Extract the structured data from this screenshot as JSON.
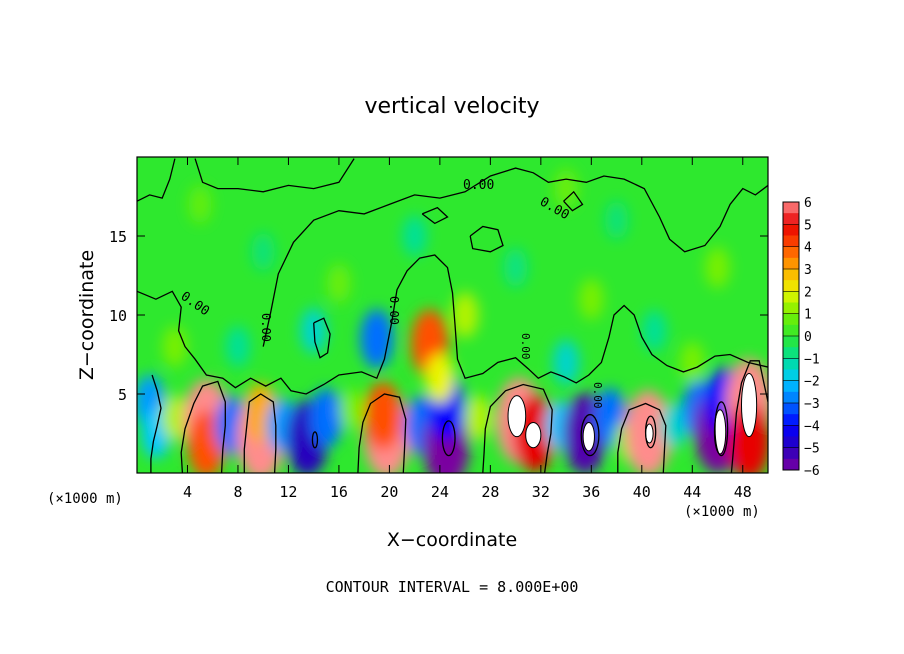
{
  "chart_data": {
    "type": "heatmap",
    "title": "vertical velocity",
    "xlabel": "X−coordinate",
    "ylabel": "Z−coordinate",
    "x_unit_left": "(×1000 m)",
    "x_unit_right": "(×1000 m)",
    "xlim": [
      0,
      50
    ],
    "ylim": [
      0,
      20
    ],
    "x_ticks": [
      "4",
      "8",
      "12",
      "16",
      "20",
      "24",
      "28",
      "32",
      "36",
      "40",
      "44",
      "48"
    ],
    "x_tick_values": [
      4,
      8,
      12,
      16,
      20,
      24,
      28,
      32,
      36,
      40,
      44,
      48
    ],
    "y_ticks": [
      "5",
      "10",
      "15"
    ],
    "y_tick_values": [
      5,
      10,
      15
    ],
    "zero_contour_label": "0.00",
    "contour_interval_text": "CONTOUR INTERVAL = 8.000E+00",
    "colorbar": {
      "min": -6,
      "max": 6,
      "labels": [
        "6",
        "5",
        "4",
        "3",
        "2",
        "1",
        "0",
        "−1",
        "−2",
        "−3",
        "−4",
        "−5",
        "−6"
      ],
      "label_values": [
        6,
        5,
        4,
        3,
        2,
        1,
        0,
        -1,
        -2,
        -3,
        -4,
        -5,
        -6
      ]
    },
    "cells": [
      {
        "x": 1,
        "z": 4.5,
        "w": -2.5
      },
      {
        "x": 1.5,
        "z": 2.5,
        "w": -2
      },
      {
        "x": 3,
        "z": 3.5,
        "w": 1.5
      },
      {
        "x": 5.5,
        "z": 3.2,
        "w": 6
      },
      {
        "x": 5.5,
        "z": 1.8,
        "w": 4
      },
      {
        "x": 7.5,
        "z": 3,
        "w": -3
      },
      {
        "x": 9.8,
        "z": 2.2,
        "w": 6
      },
      {
        "x": 9.8,
        "z": 3.8,
        "w": 3
      },
      {
        "x": 11.5,
        "z": 3,
        "w": -2.5
      },
      {
        "x": 13.5,
        "z": 2.2,
        "w": -5
      },
      {
        "x": 15,
        "z": 3.5,
        "w": -3
      },
      {
        "x": 17,
        "z": 4,
        "w": 1
      },
      {
        "x": 19.8,
        "z": 2.4,
        "w": 6
      },
      {
        "x": 19.5,
        "z": 3.6,
        "w": 4
      },
      {
        "x": 22.5,
        "z": 3,
        "w": -3
      },
      {
        "x": 24.5,
        "z": 1.8,
        "w": -6
      },
      {
        "x": 24.5,
        "z": 4.2,
        "w": -4
      },
      {
        "x": 27,
        "z": 3.5,
        "w": 1.5
      },
      {
        "x": 30.3,
        "z": 3.3,
        "w": 6
      },
      {
        "x": 31.5,
        "z": 2.5,
        "w": 5
      },
      {
        "x": 33.5,
        "z": 3,
        "w": -2
      },
      {
        "x": 35.5,
        "z": 2.5,
        "w": -5.5
      },
      {
        "x": 37.5,
        "z": 3.5,
        "w": -3
      },
      {
        "x": 38.7,
        "z": 2,
        "w": 1
      },
      {
        "x": 40.5,
        "z": 2.5,
        "w": 6
      },
      {
        "x": 42.5,
        "z": 3,
        "w": -1.5
      },
      {
        "x": 44.5,
        "z": 4,
        "w": -3
      },
      {
        "x": 46,
        "z": 2.7,
        "w": -6
      },
      {
        "x": 46.5,
        "z": 4.5,
        "w": -4
      },
      {
        "x": 48.5,
        "z": 4.5,
        "w": 6
      },
      {
        "x": 48.5,
        "z": 2,
        "w": 5
      },
      {
        "x": 19,
        "z": 8.5,
        "w": -3
      },
      {
        "x": 23.2,
        "z": 8.2,
        "w": 4
      },
      {
        "x": 24,
        "z": 6,
        "w": 2
      },
      {
        "x": 26,
        "z": 10,
        "w": 1.5
      },
      {
        "x": 14,
        "z": 9,
        "w": -1.5
      },
      {
        "x": 8,
        "z": 8,
        "w": -1
      },
      {
        "x": 34,
        "z": 7,
        "w": -1.5
      },
      {
        "x": 36,
        "z": 11,
        "w": 1
      },
      {
        "x": 41,
        "z": 9,
        "w": -1
      },
      {
        "x": 44,
        "z": 7,
        "w": 1
      },
      {
        "x": 3,
        "z": 8,
        "w": 1
      },
      {
        "x": 10,
        "z": 14,
        "w": -0.7
      },
      {
        "x": 22,
        "z": 15,
        "w": -1
      },
      {
        "x": 30,
        "z": 13,
        "w": -0.8
      },
      {
        "x": 38,
        "z": 16,
        "w": -0.7
      },
      {
        "x": 46,
        "z": 13,
        "w": 1
      },
      {
        "x": 5,
        "z": 17,
        "w": 0.7
      },
      {
        "x": 34,
        "z": 18,
        "w": 0.8
      },
      {
        "x": 16,
        "z": 12,
        "w": 0.8
      }
    ],
    "zero_contours": [
      [
        [
          0,
          11.5
        ],
        [
          1.5,
          11
        ],
        [
          2.8,
          11.5
        ],
        [
          3.5,
          10.5
        ],
        [
          3.3,
          9
        ],
        [
          3.8,
          8
        ],
        [
          4.6,
          7.2
        ],
        [
          5.5,
          6.2
        ],
        [
          6.8,
          6
        ],
        [
          7.8,
          5.4
        ],
        [
          9,
          6
        ],
        [
          10.2,
          5.5
        ],
        [
          11.4,
          6
        ],
        [
          12.2,
          5.2
        ],
        [
          13.4,
          5
        ],
        [
          14.8,
          5.6
        ],
        [
          16,
          6.2
        ],
        [
          17.8,
          6.4
        ],
        [
          19,
          6
        ],
        [
          19.6,
          7.2
        ],
        [
          20.2,
          9.6
        ],
        [
          20.6,
          11.6
        ],
        [
          21.4,
          12.8
        ],
        [
          22.4,
          13.6
        ],
        [
          23.6,
          13.8
        ],
        [
          24.6,
          13
        ],
        [
          25,
          11.4
        ],
        [
          25.2,
          9.4
        ],
        [
          25.4,
          7.2
        ],
        [
          26,
          6
        ],
        [
          27.4,
          6.3
        ],
        [
          28.6,
          7
        ],
        [
          30,
          7.3
        ],
        [
          31,
          6.6
        ],
        [
          31.8,
          6
        ],
        [
          32.8,
          6.4
        ],
        [
          33.8,
          6.1
        ],
        [
          34.8,
          5.7
        ],
        [
          35.8,
          6.2
        ],
        [
          36.8,
          7
        ],
        [
          37.4,
          8.6
        ],
        [
          37.8,
          10
        ],
        [
          38.6,
          10.6
        ],
        [
          39.4,
          10
        ],
        [
          40,
          8.6
        ],
        [
          40.8,
          7.5
        ],
        [
          42,
          6.8
        ],
        [
          43.3,
          6.4
        ],
        [
          44.4,
          6.7
        ],
        [
          45.8,
          7.4
        ],
        [
          47,
          7.5
        ],
        [
          48.4,
          7
        ],
        [
          50,
          6.7
        ]
      ],
      [
        [
          0,
          17.2
        ],
        [
          1,
          17.6
        ],
        [
          2,
          17.4
        ],
        [
          2.6,
          18.6
        ],
        [
          3,
          19.9
        ]
      ],
      [
        [
          4.6,
          19.9
        ],
        [
          5.2,
          18.4
        ],
        [
          6.4,
          18
        ],
        [
          8,
          18
        ],
        [
          10,
          17.8
        ],
        [
          12,
          18.2
        ],
        [
          14,
          18
        ],
        [
          16,
          18.4
        ],
        [
          17.2,
          19.9
        ]
      ],
      [
        [
          10,
          8
        ],
        [
          10.6,
          10.2
        ],
        [
          11.2,
          12.6
        ],
        [
          12.4,
          14.6
        ],
        [
          14,
          16
        ],
        [
          16,
          16.6
        ],
        [
          18,
          16.4
        ],
        [
          20,
          17
        ],
        [
          22,
          17.6
        ],
        [
          24,
          17.4
        ],
        [
          26,
          17.8
        ],
        [
          28,
          18.8
        ],
        [
          30,
          19.3
        ],
        [
          31.4,
          19
        ],
        [
          32.6,
          18.4
        ],
        [
          34,
          18.6
        ],
        [
          35.6,
          18.4
        ],
        [
          37,
          18.8
        ],
        [
          38.6,
          18.6
        ],
        [
          40.2,
          18
        ],
        [
          41.4,
          16.2
        ],
        [
          42.2,
          14.8
        ],
        [
          43.4,
          14
        ],
        [
          45,
          14.4
        ],
        [
          46.2,
          15.6
        ],
        [
          47,
          17
        ],
        [
          48,
          18
        ],
        [
          49,
          17.6
        ],
        [
          50,
          18.2
        ]
      ],
      [
        [
          26.4,
          15
        ],
        [
          27.4,
          15.6
        ],
        [
          28.6,
          15.4
        ],
        [
          29,
          14.4
        ],
        [
          28,
          14
        ],
        [
          26.6,
          14.2
        ],
        [
          26.4,
          15
        ]
      ],
      [
        [
          22.6,
          16.4
        ],
        [
          23.8,
          16.8
        ],
        [
          24.6,
          16.2
        ],
        [
          23.6,
          15.8
        ],
        [
          22.6,
          16.4
        ]
      ],
      [
        [
          14,
          9.5
        ],
        [
          14.8,
          9.8
        ],
        [
          15.3,
          8.8
        ],
        [
          15.1,
          7.6
        ],
        [
          14.5,
          7.3
        ],
        [
          14.1,
          8.3
        ],
        [
          14,
          9.5
        ]
      ],
      [
        [
          33.8,
          17.2
        ],
        [
          34.6,
          17.8
        ],
        [
          35.3,
          17
        ],
        [
          34.5,
          16.6
        ],
        [
          33.8,
          17.2
        ]
      ],
      [
        [
          1.2,
          6.2
        ],
        [
          1.6,
          5.2
        ],
        [
          1.9,
          4.1
        ],
        [
          1.6,
          3
        ],
        [
          1.3,
          2
        ],
        [
          1.1,
          0.9
        ],
        [
          1.1,
          0
        ]
      ],
      [
        [
          3.6,
          0
        ],
        [
          3.5,
          1.3
        ],
        [
          3.8,
          2.8
        ],
        [
          4.5,
          4.4
        ],
        [
          5.2,
          5.5
        ],
        [
          6.4,
          5.8
        ],
        [
          7,
          4.5
        ],
        [
          7,
          3
        ],
        [
          6.8,
          1.5
        ],
        [
          6.7,
          0
        ]
      ],
      [
        [
          8.5,
          0
        ],
        [
          8.5,
          1.5
        ],
        [
          8.7,
          3
        ],
        [
          8.9,
          4.5
        ],
        [
          9.8,
          5
        ],
        [
          10.8,
          4.5
        ],
        [
          11,
          3
        ],
        [
          11,
          1.5
        ],
        [
          10.9,
          0
        ]
      ],
      [
        [
          17.5,
          0
        ],
        [
          17.6,
          1.6
        ],
        [
          17.9,
          3.2
        ],
        [
          18.5,
          4.4
        ],
        [
          19.6,
          5
        ],
        [
          20.8,
          4.8
        ],
        [
          21.3,
          3.4
        ],
        [
          21.2,
          1.5
        ],
        [
          21.1,
          0
        ]
      ],
      [
        [
          27.4,
          0
        ],
        [
          27.5,
          1.3
        ],
        [
          27.6,
          2.8
        ],
        [
          28,
          4.2
        ],
        [
          29.2,
          5.2
        ],
        [
          30.6,
          5.6
        ],
        [
          32.2,
          5.3
        ],
        [
          32.9,
          4
        ],
        [
          32.8,
          2.5
        ],
        [
          32.5,
          1.2
        ],
        [
          32.3,
          0
        ]
      ],
      [
        [
          38.1,
          0
        ],
        [
          38.1,
          1.3
        ],
        [
          38.4,
          2.8
        ],
        [
          39,
          4
        ],
        [
          40.3,
          4.4
        ],
        [
          41.4,
          4
        ],
        [
          41.9,
          3
        ],
        [
          41.8,
          1.5
        ],
        [
          41.7,
          0
        ]
      ],
      [
        [
          47.1,
          0
        ],
        [
          47.3,
          1.8
        ],
        [
          47.5,
          3.8
        ],
        [
          47.9,
          5.7
        ],
        [
          48.6,
          7.1
        ],
        [
          49.3,
          7.1
        ],
        [
          49.7,
          5.6
        ],
        [
          50,
          4.5
        ]
      ]
    ],
    "closed_small_contours": [
      {
        "x": 14.1,
        "z": 2.1,
        "rx": 0.2,
        "rz": 0.5
      },
      {
        "x": 24.7,
        "z": 2.2,
        "rx": 0.5,
        "rz": 1.1
      },
      {
        "x": 35.9,
        "z": 2.4,
        "rx": 0.7,
        "rz": 1.3
      },
      {
        "x": 40.7,
        "z": 2.6,
        "rx": 0.4,
        "rz": 1.0
      },
      {
        "x": 46.3,
        "z": 2.8,
        "rx": 0.5,
        "rz": 1.7
      }
    ],
    "hatched_regions": [
      {
        "x": 30.1,
        "z": 3.6,
        "rx": 0.7,
        "rz": 1.3,
        "w": 6
      },
      {
        "x": 31.4,
        "z": 2.4,
        "rx": 0.6,
        "rz": 0.8,
        "w": 6
      },
      {
        "x": 48.5,
        "z": 4.3,
        "rx": 0.6,
        "rz": 2.0,
        "w": 6
      },
      {
        "x": 46.2,
        "z": 2.6,
        "rx": 0.45,
        "rz": 1.4,
        "w": -6
      },
      {
        "x": 35.8,
        "z": 2.3,
        "rx": 0.45,
        "rz": 0.9,
        "w": -6
      },
      {
        "x": 40.6,
        "z": 2.5,
        "rx": 0.3,
        "rz": 0.6,
        "w": -6
      }
    ]
  }
}
